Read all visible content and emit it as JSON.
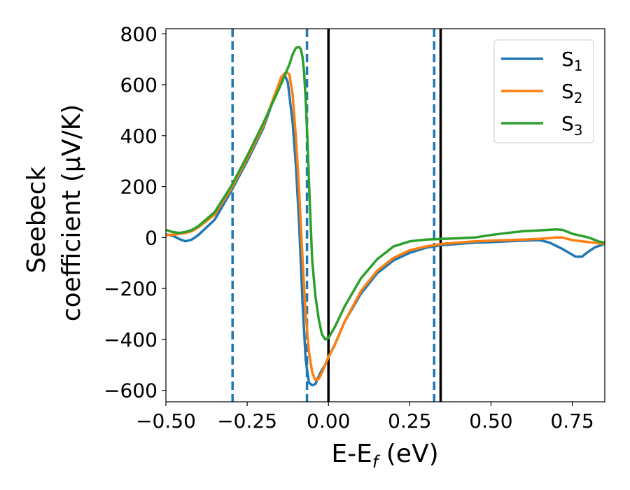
{
  "chart_data": {
    "type": "line",
    "xlabel": "E-E_f (eV)",
    "ylabel_line1": "Seebeck",
    "ylabel_line2": "coefficient  (μV/K)",
    "xlim": [
      -0.5,
      0.85
    ],
    "ylim": [
      -645,
      820
    ],
    "x_ticks": [
      -0.5,
      -0.25,
      0.0,
      0.25,
      0.5,
      0.75
    ],
    "x_tick_labels": [
      "−0.50",
      "−0.25",
      "0.00",
      "0.25",
      "0.50",
      "0.75"
    ],
    "y_ticks": [
      -600,
      -400,
      -200,
      0,
      200,
      400,
      600,
      800
    ],
    "y_tick_labels": [
      "−600",
      "−400",
      "−200",
      "0",
      "200",
      "400",
      "600",
      "800"
    ],
    "grid": false,
    "legend_position": "top-right",
    "colors": {
      "S1": "#1f77b4",
      "S2": "#ff7f0e",
      "S3": "#2ca02c",
      "vline": "#000000"
    },
    "series": [
      {
        "name": "S1",
        "color": "#1f77b4",
        "points": [
          [
            -0.5,
            12
          ],
          [
            -0.48,
            8
          ],
          [
            -0.46,
            -5
          ],
          [
            -0.44,
            -15
          ],
          [
            -0.42,
            -8
          ],
          [
            -0.4,
            10
          ],
          [
            -0.35,
            70
          ],
          [
            -0.3,
            180
          ],
          [
            -0.25,
            300
          ],
          [
            -0.2,
            430
          ],
          [
            -0.17,
            540
          ],
          [
            -0.145,
            630
          ],
          [
            -0.135,
            640
          ],
          [
            -0.125,
            610
          ],
          [
            -0.11,
            450
          ],
          [
            -0.1,
            280
          ],
          [
            -0.09,
            50
          ],
          [
            -0.08,
            -250
          ],
          [
            -0.07,
            -480
          ],
          [
            -0.06,
            -570
          ],
          [
            -0.05,
            -580
          ],
          [
            -0.04,
            -575
          ],
          [
            -0.03,
            -545
          ],
          [
            -0.02,
            -520
          ],
          [
            -0.01,
            -500
          ],
          [
            0.0,
            -470
          ],
          [
            0.02,
            -420
          ],
          [
            0.05,
            -330
          ],
          [
            0.1,
            -220
          ],
          [
            0.15,
            -140
          ],
          [
            0.2,
            -90
          ],
          [
            0.25,
            -60
          ],
          [
            0.3,
            -40
          ],
          [
            0.35,
            -30
          ],
          [
            0.4,
            -25
          ],
          [
            0.45,
            -20
          ],
          [
            0.5,
            -18
          ],
          [
            0.55,
            -15
          ],
          [
            0.6,
            -12
          ],
          [
            0.65,
            -10
          ],
          [
            0.68,
            -20
          ],
          [
            0.72,
            -45
          ],
          [
            0.76,
            -75
          ],
          [
            0.78,
            -75
          ],
          [
            0.8,
            -55
          ],
          [
            0.82,
            -38
          ],
          [
            0.85,
            -25
          ]
        ]
      },
      {
        "name": "S2",
        "color": "#ff7f0e",
        "points": [
          [
            -0.5,
            10
          ],
          [
            -0.47,
            12
          ],
          [
            -0.44,
            18
          ],
          [
            -0.42,
            25
          ],
          [
            -0.4,
            40
          ],
          [
            -0.35,
            90
          ],
          [
            -0.3,
            190
          ],
          [
            -0.25,
            310
          ],
          [
            -0.2,
            440
          ],
          [
            -0.17,
            545
          ],
          [
            -0.145,
            630
          ],
          [
            -0.13,
            650
          ],
          [
            -0.12,
            640
          ],
          [
            -0.11,
            560
          ],
          [
            -0.1,
            390
          ],
          [
            -0.09,
            180
          ],
          [
            -0.08,
            -80
          ],
          [
            -0.07,
            -300
          ],
          [
            -0.06,
            -450
          ],
          [
            -0.05,
            -530
          ],
          [
            -0.04,
            -560
          ],
          [
            -0.03,
            -555
          ],
          [
            -0.02,
            -530
          ],
          [
            -0.01,
            -500
          ],
          [
            0.0,
            -470
          ],
          [
            0.02,
            -420
          ],
          [
            0.05,
            -330
          ],
          [
            0.1,
            -210
          ],
          [
            0.15,
            -130
          ],
          [
            0.2,
            -80
          ],
          [
            0.25,
            -50
          ],
          [
            0.3,
            -35
          ],
          [
            0.35,
            -25
          ],
          [
            0.4,
            -20
          ],
          [
            0.45,
            -15
          ],
          [
            0.5,
            -12
          ],
          [
            0.55,
            -10
          ],
          [
            0.6,
            -8
          ],
          [
            0.65,
            -5
          ],
          [
            0.7,
            0
          ],
          [
            0.72,
            0
          ],
          [
            0.75,
            -10
          ],
          [
            0.8,
            -18
          ],
          [
            0.85,
            -25
          ]
        ]
      },
      {
        "name": "S3",
        "color": "#2ca02c",
        "points": [
          [
            -0.5,
            30
          ],
          [
            -0.48,
            22
          ],
          [
            -0.46,
            18
          ],
          [
            -0.44,
            22
          ],
          [
            -0.42,
            30
          ],
          [
            -0.4,
            45
          ],
          [
            -0.35,
            100
          ],
          [
            -0.3,
            200
          ],
          [
            -0.25,
            320
          ],
          [
            -0.2,
            450
          ],
          [
            -0.15,
            590
          ],
          [
            -0.12,
            680
          ],
          [
            -0.11,
            720
          ],
          [
            -0.1,
            745
          ],
          [
            -0.09,
            748
          ],
          [
            -0.085,
            740
          ],
          [
            -0.08,
            710
          ],
          [
            -0.075,
            650
          ],
          [
            -0.07,
            540
          ],
          [
            -0.065,
            400
          ],
          [
            -0.06,
            220
          ],
          [
            -0.055,
            60
          ],
          [
            -0.05,
            -90
          ],
          [
            -0.04,
            -230
          ],
          [
            -0.03,
            -320
          ],
          [
            -0.02,
            -380
          ],
          [
            -0.01,
            -400
          ],
          [
            0.0,
            -395
          ],
          [
            0.02,
            -350
          ],
          [
            0.05,
            -270
          ],
          [
            0.1,
            -160
          ],
          [
            0.15,
            -85
          ],
          [
            0.2,
            -35
          ],
          [
            0.25,
            -15
          ],
          [
            0.3,
            -8
          ],
          [
            0.35,
            -5
          ],
          [
            0.4,
            -3
          ],
          [
            0.45,
            0
          ],
          [
            0.5,
            10
          ],
          [
            0.55,
            18
          ],
          [
            0.6,
            25
          ],
          [
            0.65,
            28
          ],
          [
            0.7,
            32
          ],
          [
            0.72,
            30
          ],
          [
            0.75,
            15
          ],
          [
            0.8,
            0
          ],
          [
            0.83,
            -15
          ],
          [
            0.85,
            -20
          ]
        ]
      }
    ],
    "vlines": [
      {
        "x": -0.295,
        "style": "dashed",
        "color": "#1f77b4"
      },
      {
        "x": -0.066,
        "style": "dashed",
        "color": "#1f77b4"
      },
      {
        "x": 0.0,
        "style": "solid",
        "color": "#000000"
      },
      {
        "x": 0.325,
        "style": "dashed",
        "color": "#1f77b4"
      },
      {
        "x": 0.345,
        "style": "solid",
        "color": "#000000"
      }
    ]
  },
  "legend": {
    "items": [
      {
        "base": "S",
        "sub": "1",
        "color": "#1f77b4"
      },
      {
        "base": "S",
        "sub": "2",
        "color": "#ff7f0e"
      },
      {
        "base": "S",
        "sub": "3",
        "color": "#2ca02c"
      }
    ]
  },
  "labels": {
    "x_main": "E-E",
    "x_sub": "f",
    "x_unit": " (eV)",
    "y_line1": "Seebeck",
    "y_line2": "coefficient  (μV/K)"
  }
}
